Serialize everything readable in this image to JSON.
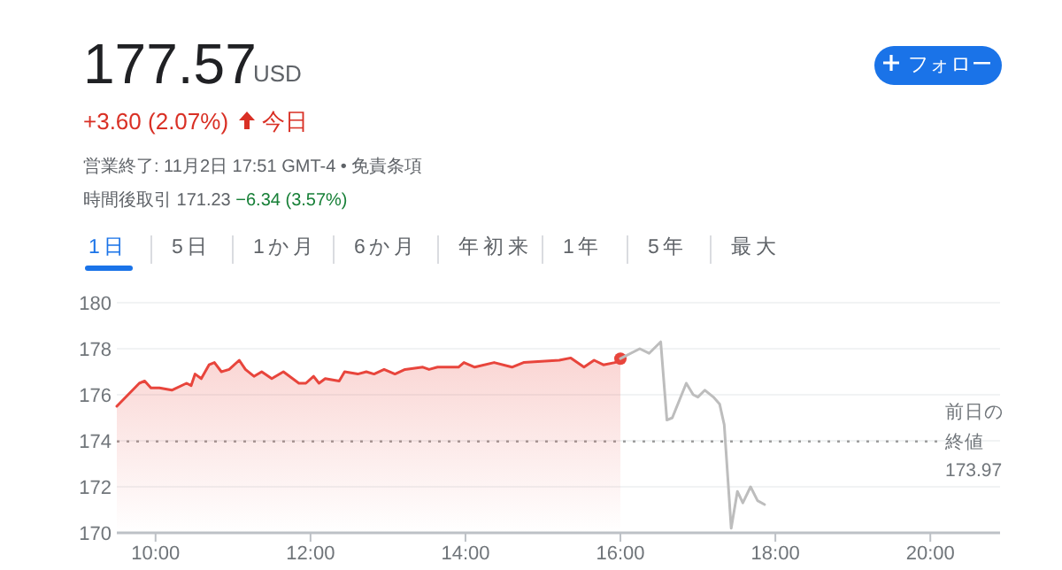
{
  "chart_data": {
    "type": "area",
    "title": "177.57",
    "subtitle": "USD",
    "annotations": [
      "+3.60 (2.07%)",
      "今日",
      "営業終了: 11月2日 17:51 GMT-4 • 免責条項",
      "時間後取引 171.23",
      "−6.34 (3.57%)",
      "1日",
      "5日",
      "1か月",
      "6か月",
      "年初来",
      "1年",
      "5年",
      "最大",
      "フォロー",
      "173.97"
    ],
    "series": [
      {
        "type": "area",
        "color": "#e8453c",
        "x": [
          9.5,
          9.79,
          9.86,
          9.94,
          10.05,
          10.21,
          10.4,
          10.46,
          10.51,
          10.59,
          10.69,
          10.76,
          10.85,
          10.95,
          11.08,
          11.16,
          11.27,
          11.37,
          11.5,
          11.65,
          11.85,
          11.94,
          12.04,
          12.11,
          12.19,
          12.37,
          12.44,
          12.61,
          12.72,
          12.82,
          12.95,
          13.09,
          13.22,
          13.45,
          13.53,
          13.64,
          13.91,
          13.98,
          14.12,
          14.37,
          14.6,
          14.75,
          15.21,
          15.36,
          15.53,
          15.66,
          15.78,
          15.93,
          16.0
        ],
        "values": [
          175.5,
          176.5,
          176.6,
          176.3,
          176.3,
          176.2,
          176.5,
          176.4,
          176.9,
          176.7,
          177.3,
          177.4,
          177.0,
          177.1,
          177.5,
          177.1,
          176.8,
          177.0,
          176.7,
          177.0,
          176.5,
          176.5,
          176.8,
          176.5,
          176.7,
          176.6,
          177.0,
          176.9,
          177.0,
          176.9,
          177.1,
          176.9,
          177.1,
          177.2,
          177.1,
          177.2,
          177.2,
          177.4,
          177.2,
          177.4,
          177.2,
          177.4,
          177.5,
          177.6,
          177.2,
          177.5,
          177.3,
          177.4,
          177.57
        ]
      },
      {
        "type": "line",
        "color": "#bdbdbd",
        "x": [
          16.0,
          16.25,
          16.37,
          16.52,
          16.6,
          16.67,
          16.85,
          16.94,
          17.0,
          17.09,
          17.2,
          17.28,
          17.34,
          17.43,
          17.51,
          17.58,
          17.68,
          17.77,
          17.86
        ],
        "values": [
          177.57,
          178.0,
          177.8,
          178.3,
          174.9,
          175.0,
          176.5,
          176.0,
          175.9,
          176.2,
          175.9,
          175.6,
          174.7,
          170.2,
          171.8,
          171.3,
          172.0,
          171.4,
          171.23
        ]
      }
    ],
    "xlim": [
      9.5,
      20.9
    ],
    "ylim": [
      170,
      180
    ],
    "xticks": [
      {
        "value": 10,
        "label": "10:00"
      },
      {
        "value": 12,
        "label": "12:00"
      },
      {
        "value": 14,
        "label": "14:00"
      },
      {
        "value": 16,
        "label": "16:00"
      },
      {
        "value": 18,
        "label": "18:00"
      },
      {
        "value": 20,
        "label": "20:00"
      }
    ],
    "yticks": [
      170,
      172,
      174,
      176,
      178,
      180
    ],
    "grid": "y",
    "ref_lines": [
      {
        "axis": "y",
        "value": 173.97,
        "label": "前日の終値",
        "line_style": "dotted",
        "color": "#9e9e9e"
      }
    ]
  }
}
